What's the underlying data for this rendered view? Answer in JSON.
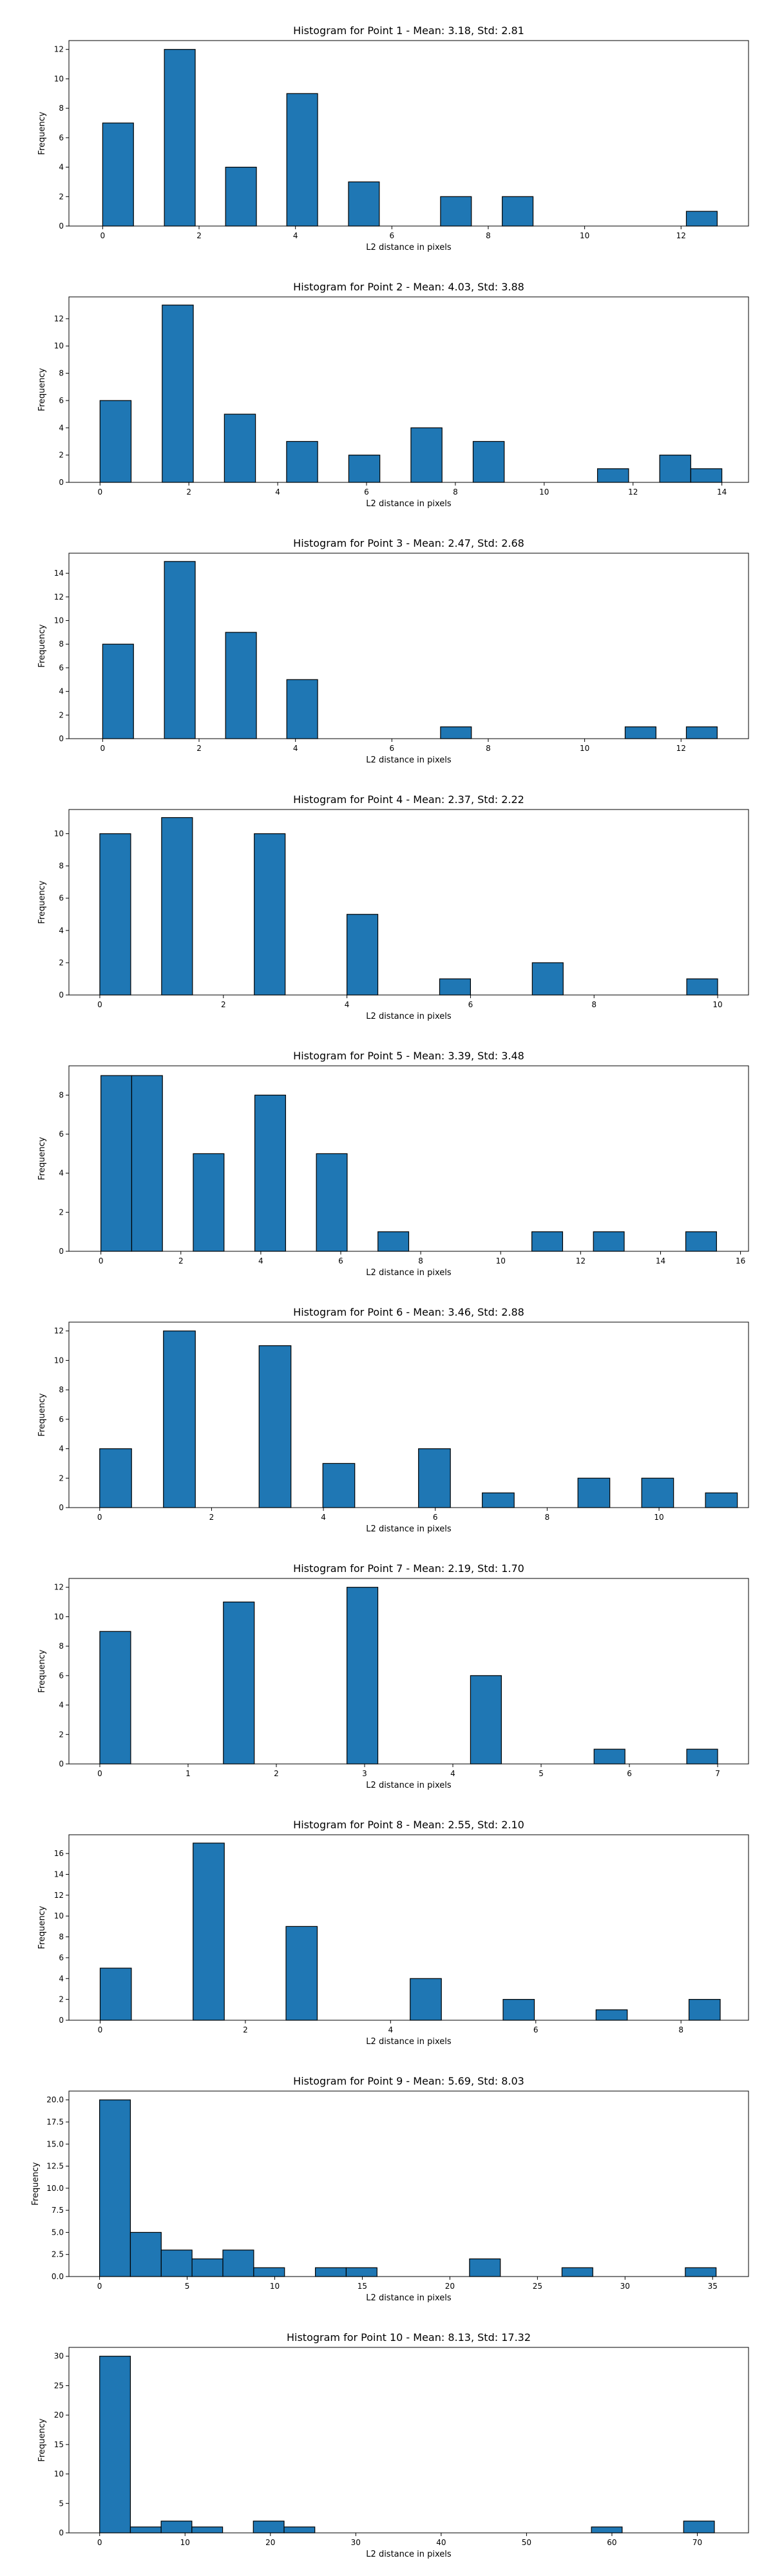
{
  "chart_data": [
    {
      "type": "bar",
      "title": "Histogram for Point 1 - Mean: 3.18, Std: 2.81",
      "xlabel": "L2 distance in pixels",
      "ylabel": "Frequency",
      "x_range": [
        -0.7,
        13.4
      ],
      "ylim": [
        0,
        12.6
      ],
      "xticks": [
        0,
        2,
        4,
        6,
        8,
        10,
        12
      ],
      "yticks": [
        0,
        2,
        4,
        6,
        8,
        10,
        12
      ],
      "bins": [
        {
          "x0": 0.0,
          "x1": 0.64,
          "value": 7
        },
        {
          "x0": 1.28,
          "x1": 1.92,
          "value": 12
        },
        {
          "x0": 2.55,
          "x1": 3.19,
          "value": 4
        },
        {
          "x0": 3.82,
          "x1": 4.46,
          "value": 9
        },
        {
          "x0": 5.1,
          "x1": 5.74,
          "value": 3
        },
        {
          "x0": 7.01,
          "x1": 7.65,
          "value": 2
        },
        {
          "x0": 8.29,
          "x1": 8.93,
          "value": 2
        },
        {
          "x0": 12.11,
          "x1": 12.75,
          "value": 1
        }
      ]
    },
    {
      "type": "bar",
      "title": "Histogram for Point 2 - Mean: 4.03, Std: 3.88",
      "xlabel": "L2 distance in pixels",
      "ylabel": "Frequency",
      "x_range": [
        -0.7,
        14.6
      ],
      "ylim": [
        0,
        13.6
      ],
      "xticks": [
        0,
        2,
        4,
        6,
        8,
        10,
        12,
        14
      ],
      "yticks": [
        0,
        2,
        4,
        6,
        8,
        10,
        12
      ],
      "bins": [
        {
          "x0": 0.0,
          "x1": 0.7,
          "value": 6
        },
        {
          "x0": 1.4,
          "x1": 2.1,
          "value": 13
        },
        {
          "x0": 2.8,
          "x1": 3.5,
          "value": 5
        },
        {
          "x0": 3.5,
          "x1": 4.2,
          "value": 0
        },
        {
          "x0": 4.2,
          "x1": 4.9,
          "value": 3
        },
        {
          "x0": 5.6,
          "x1": 6.3,
          "value": 2
        },
        {
          "x0": 7.0,
          "x1": 7.7,
          "value": 4
        },
        {
          "x0": 8.4,
          "x1": 9.1,
          "value": 3
        },
        {
          "x0": 11.2,
          "x1": 11.9,
          "value": 1
        },
        {
          "x0": 12.6,
          "x1": 13.3,
          "value": 2
        },
        {
          "x0": 13.3,
          "x1": 14.0,
          "value": 1
        }
      ]
    },
    {
      "type": "bar",
      "title": "Histogram for Point 3 - Mean: 2.47, Std: 2.68",
      "xlabel": "L2 distance in pixels",
      "ylabel": "Frequency",
      "x_range": [
        -0.7,
        13.4
      ],
      "ylim": [
        0,
        15.7
      ],
      "xticks": [
        0,
        2,
        4,
        6,
        8,
        10,
        12
      ],
      "yticks": [
        0,
        2,
        4,
        6,
        8,
        10,
        12,
        14
      ],
      "bins": [
        {
          "x0": 0.0,
          "x1": 0.64,
          "value": 8
        },
        {
          "x0": 1.28,
          "x1": 1.92,
          "value": 15
        },
        {
          "x0": 2.55,
          "x1": 3.19,
          "value": 9
        },
        {
          "x0": 3.82,
          "x1": 4.46,
          "value": 5
        },
        {
          "x0": 7.01,
          "x1": 7.65,
          "value": 1
        },
        {
          "x0": 10.84,
          "x1": 11.48,
          "value": 1
        },
        {
          "x0": 12.11,
          "x1": 12.75,
          "value": 1
        }
      ]
    },
    {
      "type": "bar",
      "title": "Histogram for Point 4 - Mean: 2.37, Std: 2.22",
      "xlabel": "L2 distance in pixels",
      "ylabel": "Frequency",
      "x_range": [
        -0.5,
        10.5
      ],
      "ylim": [
        0,
        11.5
      ],
      "xticks": [
        0,
        2,
        4,
        6,
        8,
        10
      ],
      "yticks": [
        0,
        2,
        4,
        6,
        8,
        10
      ],
      "bins": [
        {
          "x0": 0.0,
          "x1": 0.5,
          "value": 10
        },
        {
          "x0": 1.0,
          "x1": 1.5,
          "value": 11
        },
        {
          "x0": 2.5,
          "x1": 3.0,
          "value": 10
        },
        {
          "x0": 4.0,
          "x1": 4.5,
          "value": 5
        },
        {
          "x0": 5.5,
          "x1": 6.0,
          "value": 1
        },
        {
          "x0": 7.0,
          "x1": 7.5,
          "value": 2
        },
        {
          "x0": 9.5,
          "x1": 10.0,
          "value": 1
        }
      ]
    },
    {
      "type": "bar",
      "title": "Histogram for Point 5 - Mean: 3.39, Std: 3.48",
      "xlabel": "L2 distance in pixels",
      "ylabel": "Frequency",
      "x_range": [
        -0.8,
        16.2
      ],
      "ylim": [
        0,
        9.5
      ],
      "xticks": [
        0,
        2,
        4,
        6,
        8,
        10,
        12,
        14,
        16
      ],
      "yticks": [
        0,
        2,
        4,
        6,
        8
      ],
      "bins": [
        {
          "x0": 0.0,
          "x1": 0.77,
          "value": 9
        },
        {
          "x0": 0.77,
          "x1": 1.54,
          "value": 9
        },
        {
          "x0": 2.31,
          "x1": 3.08,
          "value": 5
        },
        {
          "x0": 3.85,
          "x1": 4.62,
          "value": 8
        },
        {
          "x0": 5.39,
          "x1": 6.16,
          "value": 5
        },
        {
          "x0": 6.93,
          "x1": 7.7,
          "value": 1
        },
        {
          "x0": 10.78,
          "x1": 11.55,
          "value": 1
        },
        {
          "x0": 12.32,
          "x1": 13.09,
          "value": 1
        },
        {
          "x0": 14.63,
          "x1": 15.4,
          "value": 1
        }
      ]
    },
    {
      "type": "bar",
      "title": "Histogram for Point 6 - Mean: 3.46, Std: 2.88",
      "xlabel": "L2 distance in pixels",
      "ylabel": "Frequency",
      "x_range": [
        -0.55,
        11.6
      ],
      "ylim": [
        0,
        12.6
      ],
      "xticks": [
        0,
        2,
        4,
        6,
        8,
        10
      ],
      "yticks": [
        0,
        2,
        4,
        6,
        8,
        10,
        12
      ],
      "bins": [
        {
          "x0": 0.0,
          "x1": 0.57,
          "value": 4
        },
        {
          "x0": 1.14,
          "x1": 1.71,
          "value": 12
        },
        {
          "x0": 2.28,
          "x1": 2.85,
          "value": 0
        },
        {
          "x0": 2.85,
          "x1": 3.42,
          "value": 11
        },
        {
          "x0": 3.99,
          "x1": 4.56,
          "value": 3
        },
        {
          "x0": 5.7,
          "x1": 6.27,
          "value": 4
        },
        {
          "x0": 6.84,
          "x1": 7.41,
          "value": 1
        },
        {
          "x0": 8.55,
          "x1": 9.12,
          "value": 2
        },
        {
          "x0": 9.69,
          "x1": 10.26,
          "value": 2
        },
        {
          "x0": 10.83,
          "x1": 11.4,
          "value": 1
        }
      ]
    },
    {
      "type": "bar",
      "title": "Histogram for Point 7 - Mean: 2.19, Std: 1.70",
      "xlabel": "L2 distance in pixels",
      "ylabel": "Frequency",
      "x_range": [
        -0.35,
        7.35
      ],
      "ylim": [
        0,
        12.6
      ],
      "xticks": [
        0,
        1,
        2,
        3,
        4,
        5,
        6,
        7
      ],
      "yticks": [
        0,
        2,
        4,
        6,
        8,
        10,
        12
      ],
      "bins": [
        {
          "x0": 0.0,
          "x1": 0.35,
          "value": 9
        },
        {
          "x0": 1.4,
          "x1": 1.75,
          "value": 11
        },
        {
          "x0": 2.8,
          "x1": 3.15,
          "value": 12
        },
        {
          "x0": 4.2,
          "x1": 4.55,
          "value": 6
        },
        {
          "x0": 5.6,
          "x1": 5.95,
          "value": 1
        },
        {
          "x0": 6.65,
          "x1": 7.0,
          "value": 1
        }
      ]
    },
    {
      "type": "bar",
      "title": "Histogram for Point 8 - Mean: 2.55, Std: 2.10",
      "xlabel": "L2 distance in pixels",
      "ylabel": "Frequency",
      "x_range": [
        -0.43,
        8.93
      ],
      "ylim": [
        0,
        17.8
      ],
      "xticks": [
        0,
        2,
        4,
        6,
        8
      ],
      "yticks": [
        0,
        2,
        4,
        6,
        8,
        10,
        12,
        14,
        16
      ],
      "bins": [
        {
          "x0": 0.0,
          "x1": 0.43,
          "value": 5
        },
        {
          "x0": 1.28,
          "x1": 1.71,
          "value": 17
        },
        {
          "x0": 2.56,
          "x1": 2.99,
          "value": 9
        },
        {
          "x0": 4.27,
          "x1": 4.7,
          "value": 4
        },
        {
          "x0": 5.55,
          "x1": 5.98,
          "value": 2
        },
        {
          "x0": 6.83,
          "x1": 7.26,
          "value": 1
        },
        {
          "x0": 8.11,
          "x1": 8.54,
          "value": 2
        }
      ]
    },
    {
      "type": "bar",
      "title": "Histogram for Point 9 - Mean: 5.69, Std: 8.03",
      "xlabel": "L2 distance in pixels",
      "ylabel": "Frequency",
      "x_range": [
        -1.75,
        37.05
      ],
      "ylim": [
        0,
        21.0
      ],
      "xticks": [
        0,
        5,
        10,
        15,
        20,
        25,
        30,
        35
      ],
      "yticks": [
        0.0,
        2.5,
        5.0,
        7.5,
        10.0,
        12.5,
        15.0,
        17.5,
        20.0
      ],
      "ytick_labels": [
        "0.0",
        "2.5",
        "5.0",
        "7.5",
        "10.0",
        "12.5",
        "15.0",
        "17.5",
        "20.0"
      ],
      "bins": [
        {
          "x0": 0.0,
          "x1": 1.76,
          "value": 20
        },
        {
          "x0": 1.76,
          "x1": 3.52,
          "value": 5
        },
        {
          "x0": 3.52,
          "x1": 5.28,
          "value": 3
        },
        {
          "x0": 5.28,
          "x1": 7.04,
          "value": 2
        },
        {
          "x0": 7.04,
          "x1": 8.8,
          "value": 3
        },
        {
          "x0": 8.8,
          "x1": 10.56,
          "value": 1
        },
        {
          "x0": 12.32,
          "x1": 14.08,
          "value": 1
        },
        {
          "x0": 14.08,
          "x1": 15.84,
          "value": 1
        },
        {
          "x0": 21.12,
          "x1": 22.88,
          "value": 2
        },
        {
          "x0": 26.4,
          "x1": 28.16,
          "value": 1
        },
        {
          "x0": 33.44,
          "x1": 35.2,
          "value": 1
        }
      ]
    },
    {
      "type": "bar",
      "title": "Histogram for Point 10 - Mean: 8.13, Std: 17.32",
      "xlabel": "L2 distance in pixels",
      "ylabel": "Frequency",
      "x_range": [
        -3.6,
        76.0
      ],
      "ylim": [
        0,
        31.5
      ],
      "xticks": [
        0,
        10,
        20,
        30,
        40,
        50,
        60,
        70
      ],
      "yticks": [
        0,
        5,
        10,
        15,
        20,
        25,
        30
      ],
      "bins": [
        {
          "x0": 0.0,
          "x1": 3.6,
          "value": 30
        },
        {
          "x0": 3.6,
          "x1": 7.2,
          "value": 1
        },
        {
          "x0": 7.2,
          "x1": 10.8,
          "value": 2
        },
        {
          "x0": 10.8,
          "x1": 14.4,
          "value": 1
        },
        {
          "x0": 18.0,
          "x1": 21.6,
          "value": 2
        },
        {
          "x0": 21.6,
          "x1": 25.2,
          "value": 1
        },
        {
          "x0": 57.6,
          "x1": 61.2,
          "value": 1
        },
        {
          "x0": 68.4,
          "x1": 72.0,
          "value": 2
        }
      ]
    }
  ]
}
